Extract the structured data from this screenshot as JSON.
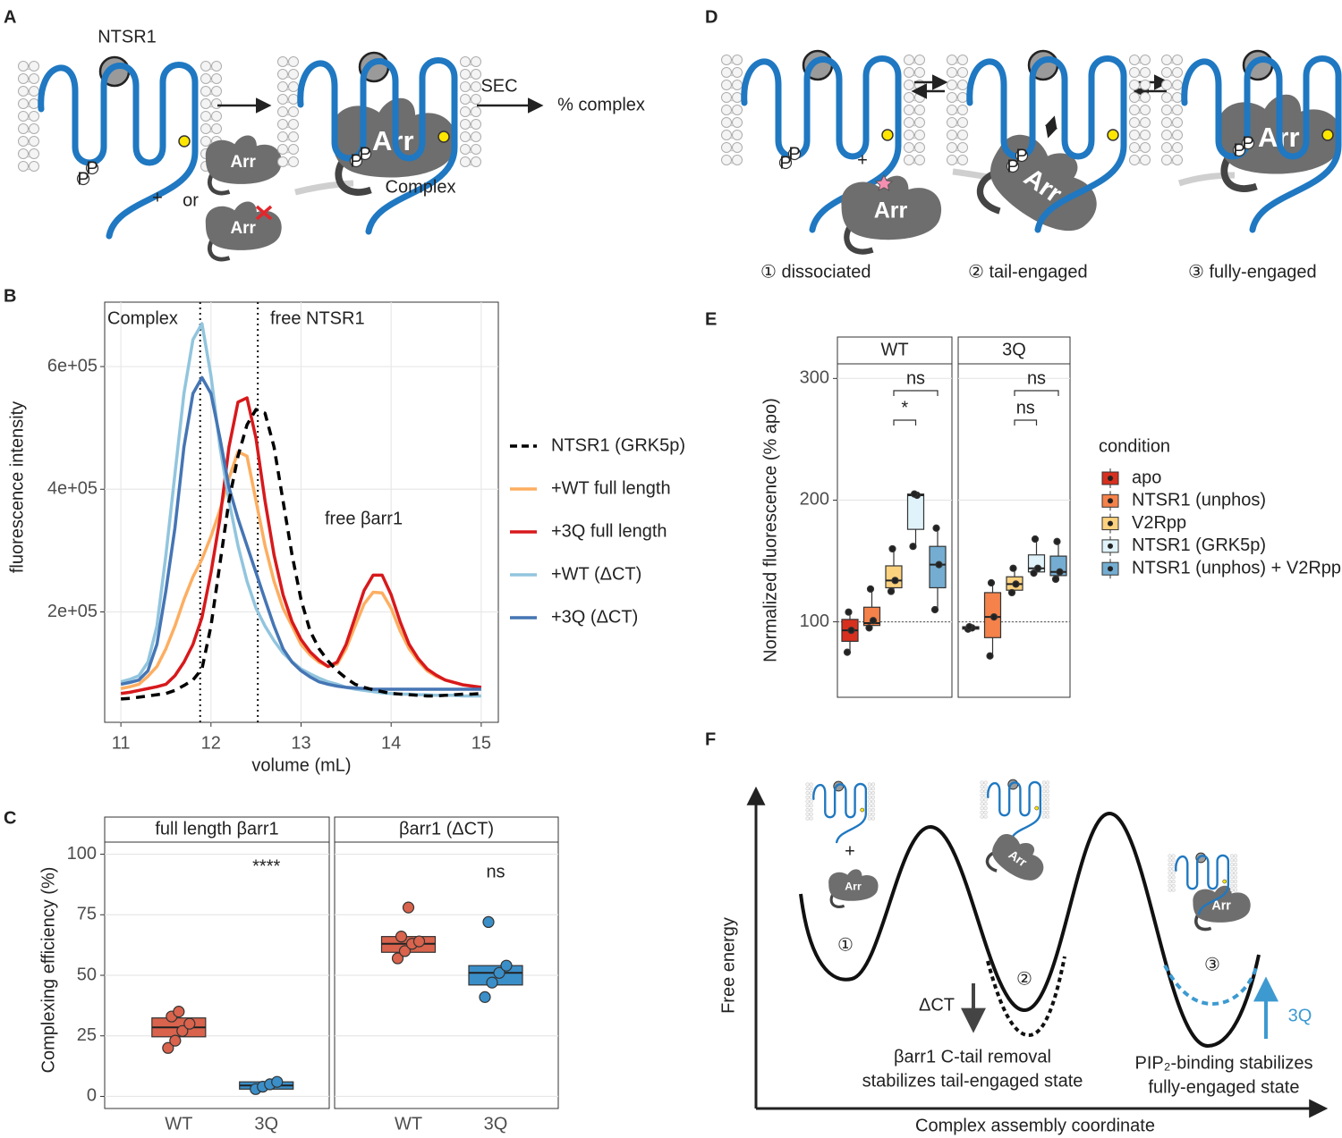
{
  "panel_labels": [
    "A",
    "B",
    "C",
    "D",
    "E",
    "F"
  ],
  "panel_a": {
    "receptor": "NTSR1",
    "arrestin": "Arr",
    "plus": "+",
    "or": "or",
    "method": "SEC",
    "readout": "% complex",
    "complex": "Complex",
    "phospho": "P"
  },
  "panel_d": {
    "arrestin": "Arr",
    "plus": "+",
    "phospho": "P",
    "states": [
      "① dissociated",
      "② tail-engaged",
      "③ fully-engaged"
    ]
  },
  "panel_f": {
    "y_label": "Free energy",
    "x_label": "Complex assembly coordinate",
    "wells": [
      "①",
      "②",
      "③"
    ],
    "delta_ct": "ΔCT",
    "mutant": "3Q",
    "note_left": [
      "βarr1 C-tail removal",
      "stabilizes tail-engaged state"
    ],
    "note_right": [
      "PIP₂-binding stabilizes",
      "fully-engaged state"
    ],
    "arrestin": "Arr",
    "plus": "+"
  },
  "chart_data": [
    {
      "type": "line",
      "x_label": "volume (mL)",
      "y_label": "fluorescence intensity",
      "x": [
        11,
        11.1,
        11.2,
        11.3,
        11.4,
        11.5,
        11.6,
        11.7,
        11.8,
        11.9,
        12,
        12.1,
        12.2,
        12.3,
        12.4,
        12.5,
        12.6,
        12.7,
        12.8,
        12.9,
        13,
        13.1,
        13.2,
        13.3,
        13.4,
        13.5,
        13.6,
        13.7,
        13.8,
        13.9,
        14,
        14.1,
        14.2,
        14.3,
        14.4,
        14.5,
        14.6,
        14.7,
        14.8,
        14.9,
        15
      ],
      "xlim": [
        10.82,
        15.19
      ],
      "xticks": [
        11,
        12,
        13,
        14,
        15
      ],
      "ylim": [
        20000,
        705000
      ],
      "yticks": [
        {
          "value": 200000,
          "label": "2e+05"
        },
        {
          "value": 400000,
          "label": "4e+05"
        },
        {
          "value": 600000,
          "label": "6e+05"
        }
      ],
      "grid": true,
      "vlines": [
        11.88,
        12.52
      ],
      "annotations": [
        "Complex",
        "free NTSR1",
        "free βarr1"
      ],
      "series": [
        {
          "name": "NTSR1 (GRK5p)",
          "color": "#000000",
          "dashed": true,
          "values": [
            58000,
            59000,
            61000,
            63000,
            65000,
            67000,
            72000,
            80000,
            89000,
            107000,
            177000,
            279000,
            381000,
            454000,
            505000,
            530000,
            524000,
            469000,
            381000,
            293000,
            220000,
            169000,
            140000,
            120000,
            104000,
            92000,
            82000,
            77000,
            73000,
            70000,
            67000,
            66000,
            65000,
            64000,
            63000,
            63000,
            64000,
            65000,
            66000,
            66000,
            67000
          ]
        },
        {
          "name": "+WT full length",
          "color": "#fdae61",
          "values": [
            75000,
            78000,
            82000,
            95000,
            111000,
            140000,
            177000,
            220000,
            257000,
            286000,
            323000,
            366000,
            418000,
            461000,
            454000,
            381000,
            308000,
            250000,
            206000,
            177000,
            147000,
            130000,
            118000,
            111000,
            115000,
            140000,
            177000,
            213000,
            232000,
            231000,
            206000,
            169000,
            140000,
            120000,
            104000,
            95000,
            89000,
            85000,
            81000,
            79000,
            77000
          ]
        },
        {
          "name": "+3Q full length",
          "color": "#d7191c",
          "values": [
            67000,
            69000,
            72000,
            75000,
            78000,
            82000,
            96000,
            118000,
            147000,
            191000,
            264000,
            352000,
            469000,
            542000,
            549000,
            483000,
            381000,
            293000,
            228000,
            184000,
            155000,
            135000,
            121000,
            111000,
            118000,
            147000,
            191000,
            235000,
            260000,
            260000,
            228000,
            184000,
            147000,
            124000,
            107000,
            97000,
            89000,
            85000,
            81000,
            79000,
            77000
          ]
        },
        {
          "name": "+WT (ΔCT)",
          "color": "#92c5de",
          "values": [
            86000,
            90000,
            96000,
            118000,
            177000,
            293000,
            425000,
            556000,
            644000,
            670000,
            585000,
            469000,
            381000,
            308000,
            250000,
            206000,
            177000,
            153000,
            133000,
            119000,
            107000,
            99000,
            92000,
            86000,
            82000,
            77000,
            74000,
            72000,
            70000,
            68000,
            67000,
            66000,
            66000,
            65000,
            65000,
            64000,
            64000,
            64000,
            63000,
            63000,
            63000
          ]
        },
        {
          "name": "+3Q (ΔCT)",
          "color": "#4575b4",
          "values": [
            82000,
            85000,
            89000,
            104000,
            147000,
            235000,
            337000,
            469000,
            556000,
            582000,
            556000,
            483000,
            403000,
            352000,
            308000,
            264000,
            220000,
            177000,
            140000,
            118000,
            104000,
            94000,
            86000,
            82000,
            79000,
            77000,
            76000,
            75000,
            74000,
            74000,
            74000,
            74000,
            74000,
            74000,
            74000,
            74000,
            74000,
            74000,
            74000,
            74000,
            74000
          ]
        }
      ]
    },
    {
      "type": "box",
      "y_label": "Complexing efficiency (%)",
      "ylim": [
        -5,
        105
      ],
      "yticks": [
        0,
        25,
        50,
        75,
        100
      ],
      "grid": true,
      "categories": [
        "WT",
        "3Q"
      ],
      "colors": [
        "#d9634c",
        "#3a8fc9"
      ],
      "facets": [
        {
          "title": "full length βarr1",
          "annotations": [
            "****"
          ],
          "boxes": [
            {
              "q1": 24.6,
              "median": 28.5,
              "q3": 32.4,
              "points": [
                20,
                23,
                27,
                30,
                33,
                35
              ]
            },
            {
              "q1": 3,
              "median": 4.5,
              "q3": 6,
              "points": [
                3,
                4,
                5,
                6
              ]
            }
          ]
        },
        {
          "title": "βarr1 (ΔCT)",
          "annotations": [
            "ns"
          ],
          "boxes": [
            {
              "q1": 59.5,
              "median": 63,
              "q3": 66,
              "points": [
                57,
                60,
                63,
                64,
                66,
                78
              ]
            },
            {
              "q1": 46,
              "median": 51,
              "q3": 54,
              "points": [
                41,
                47,
                51,
                54,
                72
              ]
            }
          ]
        }
      ]
    },
    {
      "type": "box",
      "y_label": "Normalized fluorescence (% apo)",
      "ylim": [
        38,
        312
      ],
      "yticks": [
        100,
        200,
        300
      ],
      "grid": true,
      "reference_line": 100,
      "legend_title": "condition",
      "series_names": [
        "apo",
        "NTSR1 (unphos)",
        "V2Rpp",
        "NTSR1 (GRK5p)",
        "NTSR1 (unphos) + V2Rpp"
      ],
      "colors": [
        "#d7301f",
        "#f4824a",
        "#fdd27e",
        "#e0f3fb",
        "#74add1"
      ],
      "facets": [
        {
          "title": "WT",
          "annotations": [
            "ns",
            "*"
          ],
          "boxes": [
            {
              "q1": 84,
              "median": 93,
              "q3": 102,
              "points": [
                75,
                93,
                108
              ]
            },
            {
              "q1": 97,
              "median": 99,
              "q3": 112,
              "points": [
                95,
                101,
                127
              ]
            },
            {
              "q1": 128,
              "median": 134,
              "q3": 146,
              "points": [
                125,
                134,
                160
              ]
            },
            {
              "q1": 176,
              "median": 204,
              "q3": 205,
              "points": [
                162,
                204,
                205
              ]
            },
            {
              "q1": 128,
              "median": 147,
              "q3": 162,
              "points": [
                110,
                147,
                177
              ]
            }
          ]
        },
        {
          "title": "3Q",
          "annotations": [
            "ns",
            "ns"
          ],
          "boxes": [
            {
              "q1": 94,
              "median": 95,
              "q3": 96,
              "points": [
                94,
                95,
                96
              ]
            },
            {
              "q1": 87,
              "median": 104,
              "q3": 124,
              "points": [
                72,
                104,
                132
              ]
            },
            {
              "q1": 126,
              "median": 131,
              "q3": 137,
              "points": [
                124,
                131,
                144
              ]
            },
            {
              "q1": 141,
              "median": 144,
              "q3": 155,
              "points": [
                140,
                144,
                168
              ]
            },
            {
              "q1": 138,
              "median": 141,
              "q3": 154,
              "points": [
                135,
                141,
                166
              ]
            }
          ]
        }
      ]
    }
  ]
}
